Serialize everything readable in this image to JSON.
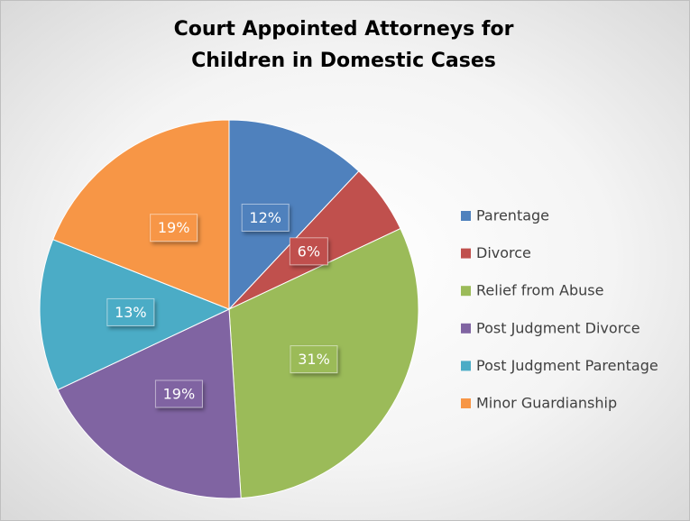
{
  "chart_data": {
    "type": "pie",
    "title": "Court Appointed Attorneys for Children in Domestic Cases",
    "categories": [
      "Parentage",
      "Divorce",
      "Relief from Abuse",
      "Post Judgment Divorce",
      "Post Judgment Parentage",
      "Minor Guardianship"
    ],
    "values": [
      12,
      6,
      31,
      19,
      13,
      19
    ],
    "value_labels": [
      "12%",
      "6%",
      "31%",
      "19%",
      "13%",
      "19%"
    ],
    "colors": [
      "#4f81bd",
      "#c0504d",
      "#9bbb59",
      "#8064a2",
      "#4bacc6",
      "#f79646"
    ],
    "legend": "right"
  }
}
